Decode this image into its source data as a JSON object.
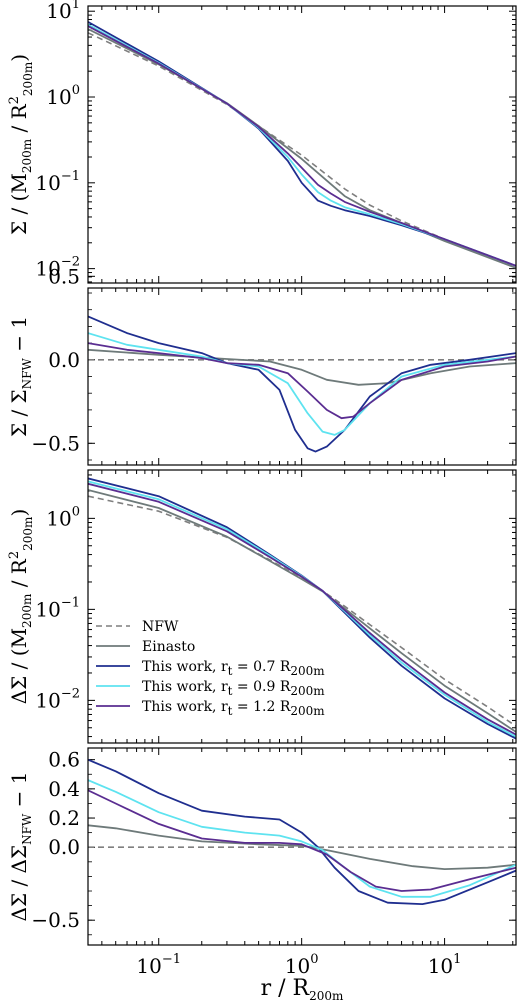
{
  "colors": {
    "nfw": "#7f7f7f",
    "einasto": "#6e7a7a",
    "rt07": "#1f2e8f",
    "rt09": "#5ee3f0",
    "rt12": "#5a2d91"
  },
  "chart_data": [
    {
      "type": "line",
      "panel": "sigma",
      "xscale": "log",
      "yscale": "log",
      "xlim": [
        0.032,
        31.6
      ],
      "ylim": [
        0.0068,
        11.5
      ],
      "ylabel": {
        "main": "Σ / (M",
        "sub1": "200m",
        "mid": " / R",
        "sup": "2",
        "sub2": "200m",
        "end": ")"
      },
      "yticks": [
        {
          "v": 0.01,
          "b": "10",
          "e": "−2"
        },
        {
          "v": 0.1,
          "b": "10",
          "e": "−1"
        },
        {
          "v": 1,
          "b": "10",
          "e": "0"
        },
        {
          "v": 10,
          "b": "10",
          "e": "1"
        }
      ],
      "series": [
        {
          "key": "nfw",
          "dash": true,
          "x": [
            0.032,
            0.1,
            0.3,
            0.5,
            1,
            2,
            3,
            5,
            10,
            31.6
          ],
          "y": [
            5.6,
            2.3,
            0.82,
            0.46,
            0.21,
            0.085,
            0.055,
            0.036,
            0.022,
            0.0105
          ]
        },
        {
          "key": "einasto",
          "x": [
            0.032,
            0.1,
            0.3,
            0.5,
            1,
            2,
            3,
            5,
            10,
            31.6
          ],
          "y": [
            6.2,
            2.4,
            0.85,
            0.46,
            0.19,
            0.07,
            0.048,
            0.034,
            0.021,
            0.0102
          ]
        },
        {
          "key": "rt07",
          "x": [
            0.032,
            0.1,
            0.3,
            0.5,
            0.8,
            1.0,
            1.3,
            1.6,
            2,
            3,
            5,
            10,
            31.6
          ],
          "y": [
            7.5,
            2.6,
            0.84,
            0.43,
            0.18,
            0.1,
            0.062,
            0.054,
            0.048,
            0.041,
            0.032,
            0.022,
            0.0108
          ]
        },
        {
          "key": "rt09",
          "x": [
            0.032,
            0.1,
            0.3,
            0.5,
            0.8,
            1.0,
            1.3,
            1.6,
            2,
            3,
            5,
            10,
            31.6
          ],
          "y": [
            7.0,
            2.5,
            0.84,
            0.44,
            0.2,
            0.125,
            0.078,
            0.062,
            0.052,
            0.043,
            0.033,
            0.022,
            0.0108
          ]
        },
        {
          "key": "rt12",
          "x": [
            0.032,
            0.1,
            0.3,
            0.5,
            0.8,
            1.0,
            1.3,
            1.6,
            2,
            3,
            5,
            10,
            31.6
          ],
          "y": [
            6.7,
            2.45,
            0.84,
            0.45,
            0.22,
            0.15,
            0.095,
            0.075,
            0.06,
            0.046,
            0.034,
            0.022,
            0.0108
          ]
        }
      ]
    },
    {
      "type": "line",
      "panel": "sigma-ratio",
      "xscale": "log",
      "yscale": "linear",
      "xlim": [
        0.032,
        31.6
      ],
      "ylim": [
        -0.63,
        0.43
      ],
      "ylabel": {
        "main": "Σ / Σ",
        "sub1": "NFW",
        "end": " − 1"
      },
      "yticks": [
        {
          "v": -0.5,
          "t": "−0.5"
        },
        {
          "v": 0.0,
          "t": "0.0"
        },
        {
          "v": 0.5,
          "t": "0.5"
        }
      ],
      "series": [
        {
          "key": "nfw",
          "dash": true,
          "x": [
            0.032,
            31.6
          ],
          "y": [
            0.0,
            0.0
          ]
        },
        {
          "key": "einasto",
          "x": [
            0.032,
            0.1,
            0.3,
            0.6,
            1,
            1.5,
            2.5,
            4,
            8,
            15,
            31.6
          ],
          "y": [
            0.06,
            0.03,
            0.005,
            -0.01,
            -0.06,
            -0.12,
            -0.15,
            -0.14,
            -0.08,
            -0.04,
            -0.02
          ]
        },
        {
          "key": "rt07",
          "x": [
            0.032,
            0.06,
            0.1,
            0.2,
            0.3,
            0.5,
            0.7,
            0.9,
            1.1,
            1.25,
            1.5,
            2,
            3,
            5,
            8,
            15,
            31.6
          ],
          "y": [
            0.26,
            0.16,
            0.1,
            0.04,
            -0.02,
            -0.06,
            -0.18,
            -0.42,
            -0.53,
            -0.55,
            -0.52,
            -0.42,
            -0.22,
            -0.08,
            -0.03,
            0.0,
            0.04
          ]
        },
        {
          "key": "rt09",
          "x": [
            0.032,
            0.06,
            0.1,
            0.2,
            0.3,
            0.5,
            0.8,
            1.1,
            1.4,
            1.7,
            2,
            3,
            5,
            10,
            20,
            31.6
          ],
          "y": [
            0.16,
            0.09,
            0.06,
            0.02,
            -0.02,
            -0.04,
            -0.14,
            -0.32,
            -0.43,
            -0.45,
            -0.42,
            -0.26,
            -0.1,
            -0.03,
            0.0,
            0.02
          ]
        },
        {
          "key": "rt12",
          "x": [
            0.032,
            0.06,
            0.1,
            0.2,
            0.3,
            0.5,
            0.8,
            1.1,
            1.5,
            1.9,
            2.3,
            3,
            5,
            10,
            20,
            31.6
          ],
          "y": [
            0.1,
            0.06,
            0.04,
            0.01,
            -0.02,
            -0.03,
            -0.08,
            -0.19,
            -0.3,
            -0.35,
            -0.34,
            -0.26,
            -0.12,
            -0.04,
            -0.01,
            0.02
          ]
        }
      ]
    },
    {
      "type": "line",
      "panel": "delta-sigma",
      "xscale": "log",
      "yscale": "log",
      "xlim": [
        0.032,
        31.6
      ],
      "ylim": [
        0.0034,
        3.4
      ],
      "ylabel": {
        "main": "ΔΣ / (M",
        "sub1": "200m",
        "mid": " / R",
        "sup": "2",
        "sub2": "200m",
        "end": ")"
      },
      "yticks": [
        {
          "v": 0.01,
          "b": "10",
          "e": "−2"
        },
        {
          "v": 0.1,
          "b": "10",
          "e": "−1"
        },
        {
          "v": 1,
          "b": "10",
          "e": "0"
        }
      ],
      "series": [
        {
          "key": "nfw",
          "dash": true,
          "x": [
            0.032,
            0.1,
            0.3,
            0.6,
            1,
            1.4,
            2,
            3,
            5,
            10,
            20,
            31.6
          ],
          "y": [
            1.75,
            1.2,
            0.62,
            0.35,
            0.22,
            0.16,
            0.108,
            0.068,
            0.038,
            0.017,
            0.0085,
            0.0052
          ]
        },
        {
          "key": "einasto",
          "x": [
            0.032,
            0.1,
            0.3,
            0.6,
            1,
            1.4,
            2,
            3,
            5,
            10,
            20,
            31.6
          ],
          "y": [
            2.05,
            1.3,
            0.63,
            0.34,
            0.215,
            0.158,
            0.102,
            0.062,
            0.033,
            0.0145,
            0.0072,
            0.0045
          ]
        },
        {
          "key": "rt07",
          "x": [
            0.032,
            0.1,
            0.3,
            0.6,
            1,
            1.4,
            2,
            3,
            5,
            10,
            20,
            31.6
          ],
          "y": [
            2.75,
            1.75,
            0.8,
            0.4,
            0.235,
            0.16,
            0.092,
            0.049,
            0.024,
            0.0105,
            0.0055,
            0.0038
          ]
        },
        {
          "key": "rt09",
          "x": [
            0.032,
            0.1,
            0.3,
            0.6,
            1,
            1.4,
            2,
            3,
            5,
            10,
            20,
            31.6
          ],
          "y": [
            2.55,
            1.62,
            0.76,
            0.39,
            0.232,
            0.16,
            0.095,
            0.052,
            0.026,
            0.0115,
            0.0058,
            0.004
          ]
        },
        {
          "key": "rt12",
          "x": [
            0.032,
            0.1,
            0.3,
            0.6,
            1,
            1.4,
            2,
            3,
            5,
            10,
            20,
            31.6
          ],
          "y": [
            2.4,
            1.52,
            0.72,
            0.375,
            0.228,
            0.16,
            0.098,
            0.055,
            0.028,
            0.0122,
            0.0062,
            0.0042
          ]
        }
      ]
    },
    {
      "type": "line",
      "panel": "delta-sigma-ratio",
      "xscale": "log",
      "yscale": "linear",
      "xlim": [
        0.032,
        31.6
      ],
      "ylim": [
        -0.67,
        0.68
      ],
      "ylabel": {
        "main": "ΔΣ / ΔΣ",
        "sub1": "NFW",
        "end": " − 1"
      },
      "xlabel": {
        "main": "r / R",
        "sub1": "200m"
      },
      "yticks": [
        {
          "v": -0.5,
          "t": "−0.5"
        },
        {
          "v": 0.0,
          "t": "0.0"
        },
        {
          "v": 0.2,
          "t": "0.2"
        },
        {
          "v": 0.4,
          "t": "0.4"
        },
        {
          "v": 0.6,
          "t": "0.6"
        }
      ],
      "xticks": [
        {
          "v": 0.1,
          "b": "10",
          "e": "−1"
        },
        {
          "v": 1,
          "b": "10",
          "e": "0"
        },
        {
          "v": 10,
          "b": "10",
          "e": "1"
        }
      ],
      "series": [
        {
          "key": "nfw",
          "dash": true,
          "x": [
            0.032,
            31.6
          ],
          "y": [
            0.0,
            0.0
          ]
        },
        {
          "key": "einasto",
          "x": [
            0.032,
            0.05,
            0.1,
            0.2,
            0.5,
            1,
            1.5,
            3,
            6,
            10,
            20,
            31.6
          ],
          "y": [
            0.15,
            0.13,
            0.08,
            0.04,
            0.02,
            0.01,
            -0.02,
            -0.08,
            -0.13,
            -0.15,
            -0.14,
            -0.12
          ]
        },
        {
          "key": "rt07",
          "x": [
            0.032,
            0.05,
            0.1,
            0.2,
            0.4,
            0.7,
            1,
            1.3,
            1.7,
            2.5,
            4,
            7,
            10,
            20,
            31.6
          ],
          "y": [
            0.6,
            0.52,
            0.37,
            0.25,
            0.21,
            0.19,
            0.1,
            0.0,
            -0.14,
            -0.3,
            -0.38,
            -0.39,
            -0.36,
            -0.24,
            -0.16
          ]
        },
        {
          "key": "rt09",
          "x": [
            0.032,
            0.05,
            0.1,
            0.2,
            0.4,
            0.7,
            1,
            1.4,
            2,
            3,
            5,
            8,
            15,
            31.6
          ],
          "y": [
            0.46,
            0.38,
            0.24,
            0.14,
            0.1,
            0.08,
            0.04,
            -0.02,
            -0.14,
            -0.27,
            -0.34,
            -0.34,
            -0.26,
            -0.12
          ]
        },
        {
          "key": "rt12",
          "x": [
            0.032,
            0.05,
            0.1,
            0.2,
            0.4,
            0.7,
            1,
            1.5,
            2.2,
            3.3,
            5,
            8,
            15,
            31.6
          ],
          "y": [
            0.39,
            0.3,
            0.16,
            0.06,
            0.03,
            0.03,
            0.02,
            -0.05,
            -0.17,
            -0.27,
            -0.3,
            -0.29,
            -0.22,
            -0.14
          ]
        }
      ]
    }
  ],
  "legend": {
    "placement": "lower-left of third panel",
    "entries": [
      {
        "key": "nfw",
        "dash": true,
        "text": "NFW"
      },
      {
        "key": "einasto",
        "text": "Einasto"
      },
      {
        "key": "rt07",
        "text": "This work, r",
        "sub": "t",
        "rest": " = 0.7 R",
        "sub2": "200m"
      },
      {
        "key": "rt09",
        "text": "This work, r",
        "sub": "t",
        "rest": " = 0.9 R",
        "sub2": "200m"
      },
      {
        "key": "rt12",
        "text": "This work, r",
        "sub": "t",
        "rest": " = 1.2 R",
        "sub2": "200m"
      }
    ]
  }
}
